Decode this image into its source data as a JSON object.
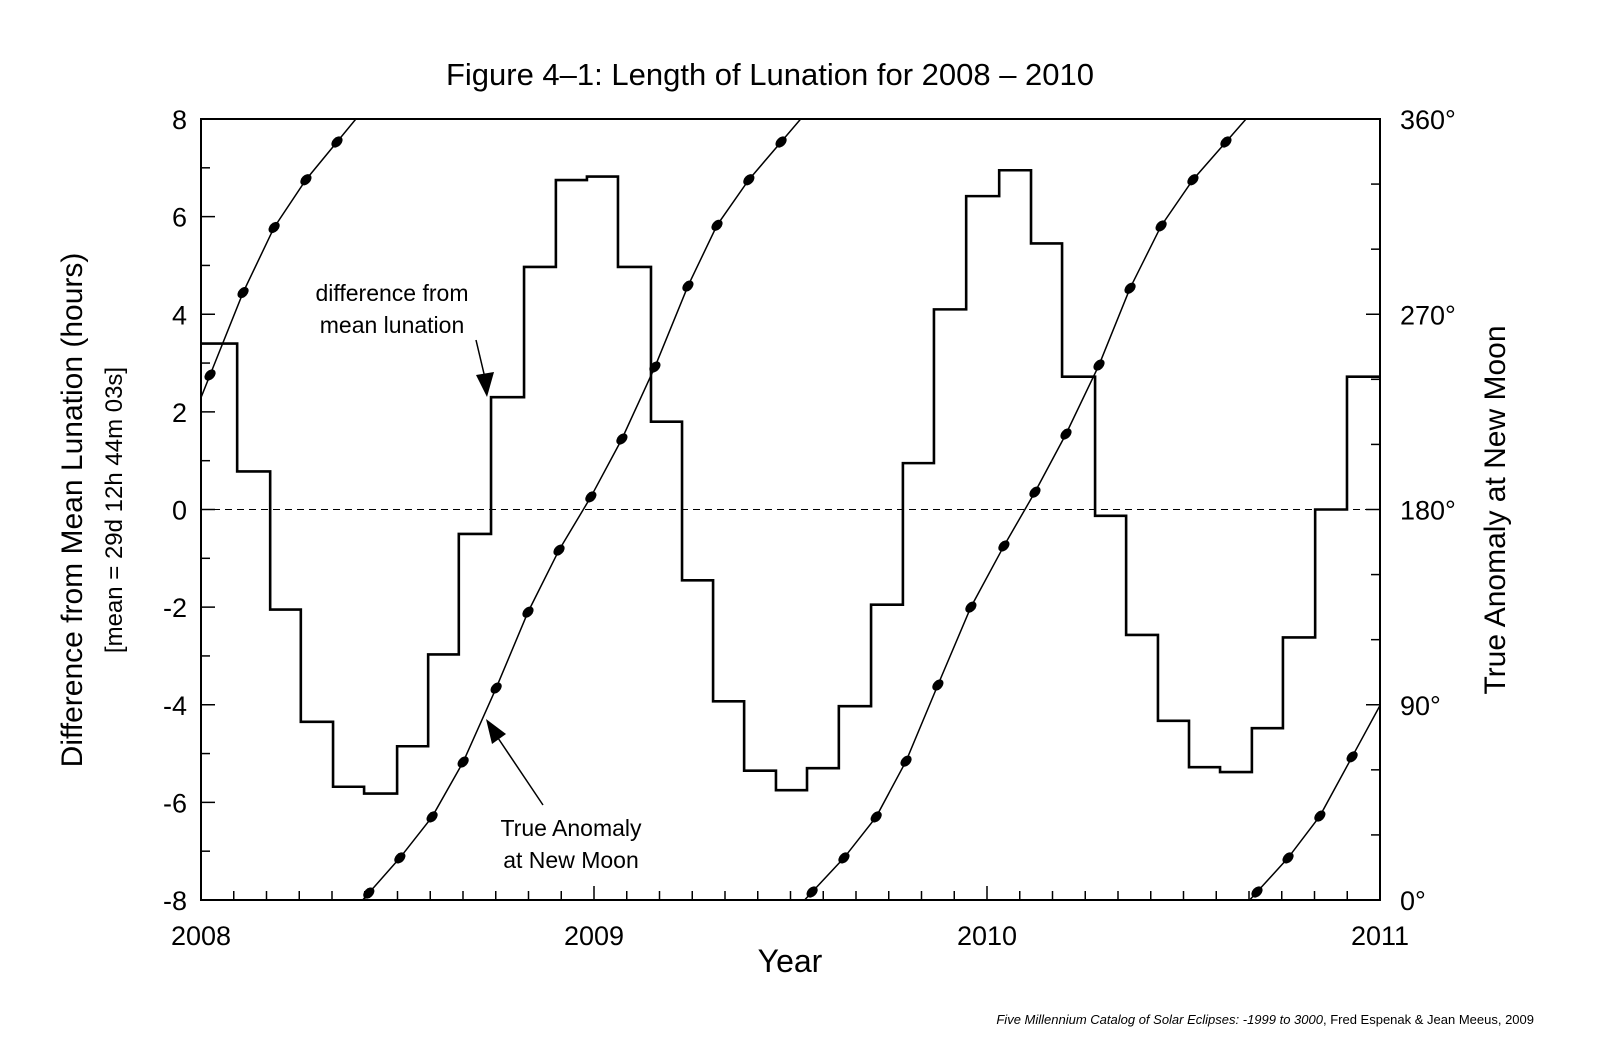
{
  "chart_data": {
    "type": "line",
    "title": "Figure 4–1: Length of Lunation for 2008 – 2010",
    "xlabel": "Year",
    "ylabel": "Difference from Mean Lunation (hours)",
    "ylabel2": "[mean = 29d 12h 44m 03s]",
    "y2label": "True Anomaly at New Moon",
    "xlim": [
      2008,
      2011
    ],
    "ylim": [
      -8,
      8
    ],
    "y2lim": [
      0,
      360
    ],
    "x_ticks": [
      "2008",
      "2009",
      "2010",
      "2011"
    ],
    "y_ticks": [
      "8",
      "6",
      "4",
      "2",
      "0",
      "-2",
      "-4",
      "-6",
      "-8"
    ],
    "y2_ticks": [
      "360°",
      "270°",
      "180°",
      "90°",
      "0°"
    ],
    "annotations": {
      "difference_line1": "difference from",
      "difference_line2": "mean lunation",
      "anomaly_line1": "True Anomaly",
      "anomaly_line2": "at New Moon"
    },
    "series": [
      {
        "name": "difference from mean lunation",
        "style": "step",
        "x_starts": [
          2008.0,
          2008.092,
          2008.176,
          2008.254,
          2008.336,
          2008.415,
          2008.499,
          2008.578,
          2008.656,
          2008.738,
          2008.822,
          2008.903,
          2008.982,
          2009.061,
          2009.145,
          2009.224,
          2009.303,
          2009.382,
          2009.463,
          2009.542,
          2009.623,
          2009.705,
          2009.786,
          2009.865,
          2009.947,
          2010.031,
          2010.112,
          2010.191,
          2010.275,
          2010.354,
          2010.435,
          2010.514,
          2010.593,
          2010.674,
          2010.753,
          2010.835,
          2010.916
        ],
        "x_end": 2011.0,
        "values": [
          3.4,
          0.78,
          -2.05,
          -4.35,
          -5.68,
          -5.82,
          -4.85,
          -2.97,
          -0.5,
          2.3,
          4.97,
          6.75,
          6.82,
          4.97,
          1.8,
          -1.45,
          -3.93,
          -5.35,
          -5.75,
          -5.3,
          -4.03,
          -1.95,
          0.95,
          4.1,
          6.42,
          6.95,
          5.45,
          2.72,
          -0.13,
          -2.57,
          -4.33,
          -5.28,
          -5.38,
          -4.48,
          -2.62,
          0.0,
          2.72
        ]
      },
      {
        "name": "True Anomaly at New Moon",
        "style": "line-markers",
        "axis": "right",
        "x": [
          2008.023,
          2008.107,
          2008.186,
          2008.267,
          2008.346,
          2008.427,
          2008.506,
          2008.588,
          2008.667,
          2008.751,
          2008.832,
          2008.911,
          2008.992,
          2009.071,
          2009.155,
          2009.239,
          2009.313,
          2009.394,
          2009.476,
          2009.555,
          2009.636,
          2009.718,
          2009.794,
          2009.875,
          2009.959,
          2010.043,
          2010.122,
          2010.201,
          2010.285,
          2010.364,
          2010.443,
          2010.524,
          2010.608,
          2010.687,
          2010.766,
          2010.847,
          2010.929
        ],
        "values": [
          242,
          280,
          310,
          332,
          349.4,
          3.2,
          19.4,
          38.3,
          63.6,
          97.7,
          132.7,
          161.3,
          185.8,
          212.5,
          245.7,
          283,
          311,
          332,
          349.4,
          3.7,
          19.4,
          38.3,
          64,
          99.1,
          135,
          163.2,
          188,
          214.8,
          246.6,
          282,
          310.7,
          332,
          349.4,
          3.7,
          19.4,
          38.7,
          66
        ]
      }
    ],
    "reference_line": {
      "y": 0,
      "style": "dashed"
    }
  },
  "credit": {
    "italic": "Five Millennium Catalog of Solar Eclipses: -1999 to 3000",
    "rest": ", Fred Espenak & Jean Meeus, 2009"
  }
}
